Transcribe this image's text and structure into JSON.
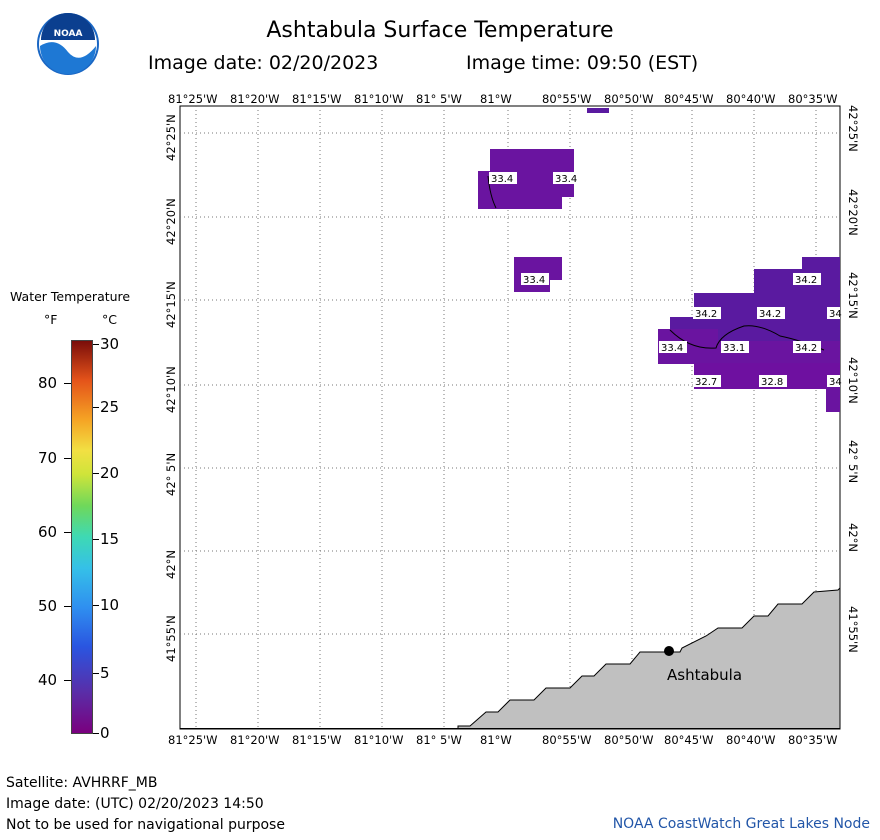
{
  "header": {
    "title": "Ashtabula Surface Temperature",
    "image_date": "Image date: 02/20/2023",
    "image_time": "Image time: 09:50 (EST)"
  },
  "logo": {
    "text": "NOAA"
  },
  "map": {
    "lon_ticks": [
      "81°25'W",
      "81°20'W",
      "81°15'W",
      "81°10'W",
      "81° 5'W",
      "81°W",
      "80°55'W",
      "80°50'W",
      "80°45'W",
      "80°40'W",
      "80°35'W"
    ],
    "lat_ticks": [
      "42°25'N",
      "42°20'N",
      "42°15'N",
      "42°10'N",
      "42° 5'N",
      "42°N",
      "41°55'N"
    ],
    "city": "Ashtabula",
    "land_color": "#c0c0c0",
    "water_color": "#ffffff",
    "temp_labels": [
      "33.4",
      "33.4",
      "33.4",
      "34.2",
      "34.2",
      "34.2",
      "34",
      "33.4",
      "33.1",
      "34.2",
      "32.7",
      "32.8",
      "34"
    ]
  },
  "legend": {
    "title": "Water Temperature",
    "unit_f": "°F",
    "unit_c": "°C",
    "f_ticks": [
      "80",
      "70",
      "60",
      "50",
      "40"
    ],
    "c_ticks": [
      "30",
      "25",
      "20",
      "15",
      "10",
      "5",
      "0"
    ]
  },
  "footer": {
    "satellite": "Satellite: AVHRRF_MB",
    "utc_date": "Image date: (UTC) 02/20/2023  14:50",
    "disclaimer": "Not to be used for navigational purpose",
    "credit": "NOAA CoastWatch Great Lakes Node"
  }
}
